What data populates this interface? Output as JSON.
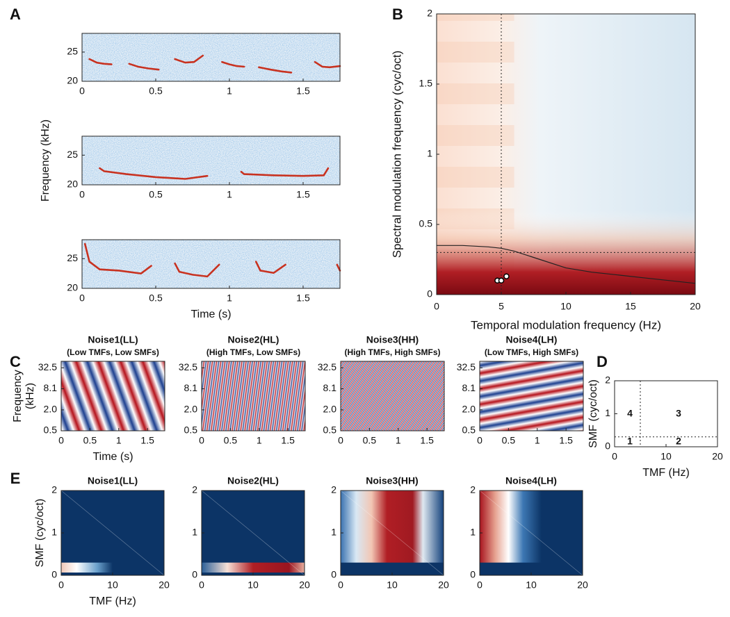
{
  "chart_data": [
    {
      "type": "spectrogram",
      "panel_label": "A",
      "color": "#c83220",
      "xlim": [
        0,
        1.75
      ],
      "xticks": [
        0,
        0.5,
        1,
        1.5
      ],
      "ylim": [
        20,
        28.2
      ],
      "yticks": [
        20,
        25
      ],
      "series": [
        {
          "x": [
            0.05,
            0.1,
            0.15,
            0.2
          ],
          "values": [
            23.8,
            23.2,
            23.0,
            22.9
          ]
        },
        {
          "x": [
            0.32,
            0.38,
            0.45,
            0.52
          ],
          "values": [
            23.0,
            22.5,
            22.2,
            22.0
          ]
        },
        {
          "x": [
            0.63,
            0.7,
            0.76,
            0.82
          ],
          "values": [
            23.8,
            23.2,
            23.3,
            24.4
          ]
        },
        {
          "x": [
            0.95,
            1.0,
            1.05,
            1.1
          ],
          "values": [
            23.3,
            22.9,
            22.6,
            22.5
          ]
        },
        {
          "x": [
            1.2,
            1.28,
            1.35,
            1.42
          ],
          "values": [
            22.4,
            22.0,
            21.7,
            21.5
          ]
        },
        {
          "x": [
            1.58,
            1.63,
            1.68,
            1.75
          ],
          "values": [
            23.3,
            22.5,
            22.4,
            22.6
          ]
        }
      ]
    },
    {
      "type": "spectrogram",
      "color": "#c83220",
      "ylabel": "Frequency (kHz)",
      "xlim": [
        0,
        1.75
      ],
      "xticks": [
        0,
        0.5,
        1,
        1.5
      ],
      "ylim": [
        20,
        28.2
      ],
      "yticks": [
        20,
        25
      ],
      "series": [
        {
          "x": [
            0.12,
            0.15,
            0.3,
            0.5,
            0.7,
            0.85
          ],
          "values": [
            22.8,
            22.3,
            21.8,
            21.3,
            21.0,
            21.5
          ]
        },
        {
          "x": [
            1.08,
            1.1,
            1.3,
            1.5,
            1.64,
            1.67
          ],
          "values": [
            22.2,
            21.8,
            21.6,
            21.5,
            21.6,
            22.8
          ]
        }
      ]
    },
    {
      "type": "spectrogram",
      "color": "#c83220",
      "xlabel": "Time (s)",
      "xlim": [
        0,
        1.75
      ],
      "xticks": [
        0,
        0.5,
        1,
        1.5
      ],
      "ylim": [
        20,
        28.2
      ],
      "yticks": [
        20,
        25
      ],
      "series": [
        {
          "x": [
            0.02,
            0.05,
            0.12,
            0.25,
            0.4,
            0.47
          ],
          "values": [
            27.5,
            24.5,
            23.2,
            23.0,
            22.5,
            23.8
          ]
        },
        {
          "x": [
            0.63,
            0.66,
            0.75,
            0.85,
            0.93
          ],
          "values": [
            24.2,
            22.8,
            22.3,
            22.0,
            24.0
          ]
        },
        {
          "x": [
            1.18,
            1.21,
            1.3,
            1.38
          ],
          "values": [
            24.5,
            23.0,
            22.6,
            24.0
          ]
        },
        {
          "x": [
            1.73,
            1.75
          ],
          "values": [
            24.0,
            23.0
          ]
        }
      ]
    },
    {
      "type": "modulation",
      "panel_label": "B",
      "xlabel": "Temporal modulation frequency (Hz)",
      "ylabel": "Spectral modulation frequency (cyc/oct)",
      "xlim": [
        0,
        20
      ],
      "xticks": [
        0,
        5,
        10,
        15,
        20
      ],
      "ylim": [
        0,
        2
      ],
      "yticks": [
        0,
        0.5,
        1,
        1.5,
        2
      ],
      "vline": 5,
      "hline": 0.3,
      "contour": {
        "x": [
          0,
          2,
          4,
          5,
          6,
          8,
          10,
          12,
          14,
          16,
          18,
          20
        ],
        "values": [
          0.35,
          0.35,
          0.34,
          0.33,
          0.31,
          0.25,
          0.19,
          0.16,
          0.14,
          0.12,
          0.1,
          0.08
        ]
      },
      "points": {
        "x": [
          4.7,
          5.0,
          5.4
        ],
        "values": [
          0.1,
          0.1,
          0.13
        ]
      }
    },
    {
      "type": "stimulus",
      "panel_label": "C",
      "title": "Noise1(LL)",
      "subtitle": "(Low TMFs, Low SMFs)",
      "xlabel": "Time (s)",
      "ylabel": [
        "Frequency",
        "(kHz)"
      ],
      "log_y": true,
      "xlim": [
        0,
        1.8
      ],
      "xticks": [
        0,
        0.5,
        1,
        1.5
      ],
      "ylim": [
        0.5,
        50
      ],
      "yticks": [
        {
          "value": 0.5,
          "label": "0.5"
        },
        {
          "value": 2,
          "label": "2.0"
        },
        8.1,
        32.5
      ]
    },
    {
      "type": "stimulus",
      "title": "Noise2(HL)",
      "subtitle": "(High TMFs, Low SMFs)",
      "log_y": true,
      "xlim": [
        0,
        1.8
      ],
      "xticks": [
        0,
        0.5,
        1,
        1.5
      ],
      "ylim": [
        0.5,
        50
      ],
      "yticks": [
        {
          "value": 0.5,
          "label": "0.5"
        },
        {
          "value": 2,
          "label": "2.0"
        },
        8.1,
        32.5
      ]
    },
    {
      "type": "stimulus",
      "title": "Noise3(HH)",
      "subtitle": "(High TMFs, High SMFs)",
      "log_y": true,
      "xlim": [
        0,
        1.8
      ],
      "xticks": [
        0,
        0.5,
        1,
        1.5
      ],
      "ylim": [
        0.5,
        50
      ],
      "yticks": [
        {
          "value": 0.5,
          "label": "0.5"
        },
        {
          "value": 2,
          "label": "2.0"
        },
        8.1,
        32.5
      ]
    },
    {
      "type": "stimulus",
      "title": "Noise4(LH)",
      "subtitle": "(Low TMFs, High SMFs)",
      "log_y": true,
      "xlim": [
        0,
        1.8
      ],
      "xticks": [
        0,
        0.5,
        1,
        1.5
      ],
      "ylim": [
        0.5,
        50
      ],
      "yticks": [
        {
          "value": 0.5,
          "label": "0.5"
        },
        {
          "value": 2,
          "label": "2.0"
        },
        8.1,
        32.5
      ]
    },
    {
      "type": "schematic",
      "panel_label": "D",
      "xlabel": "TMF (Hz)",
      "ylabel": "SMF (cyc/oct)",
      "xlim": [
        0,
        20
      ],
      "xticks": [
        0,
        10,
        20
      ],
      "ylim": [
        0,
        2
      ],
      "yticks": [
        0,
        1,
        2
      ],
      "vline": 5,
      "hline": 0.3,
      "region_labels": [
        "1",
        "2",
        "3",
        "4"
      ]
    },
    {
      "type": "heatmap",
      "panel_label": "E",
      "title": "Noise1(LL)",
      "xlabel": "TMF (Hz)",
      "ylabel": "SMF (cyc/oct)",
      "xlim": [
        0,
        20
      ],
      "xticks": [
        0,
        10,
        20
      ],
      "ylim": [
        0,
        2
      ],
      "yticks": [
        0,
        1,
        2
      ]
    },
    {
      "type": "heatmap",
      "title": "Noise2(HL)",
      "xlim": [
        0,
        20
      ],
      "xticks": [
        0,
        10,
        20
      ],
      "ylim": [
        0,
        2
      ],
      "yticks": [
        0,
        1,
        2
      ]
    },
    {
      "type": "heatmap",
      "title": "Noise3(HH)",
      "xlim": [
        0,
        20
      ],
      "xticks": [
        0,
        10,
        20
      ],
      "ylim": [
        0,
        2
      ],
      "yticks": [
        0,
        1,
        2
      ]
    },
    {
      "type": "heatmap",
      "title": "Noise4(LH)",
      "xlim": [
        0,
        20
      ],
      "xticks": [
        0,
        10,
        20
      ],
      "ylim": [
        0,
        2
      ],
      "yticks": [
        0,
        1,
        2
      ]
    }
  ]
}
